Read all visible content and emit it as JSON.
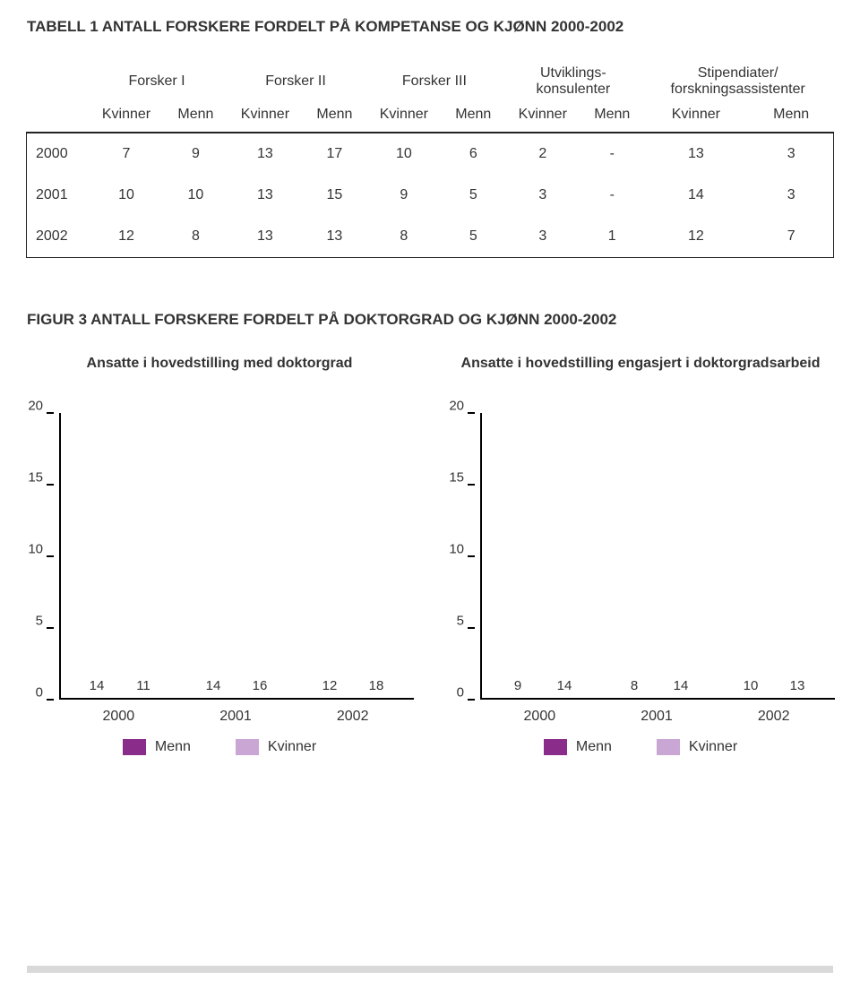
{
  "table": {
    "title": "TABELL 1  ANTALL FORSKERE FORDELT PÅ KOMPETANSE OG KJØNN 2000-2002",
    "groups": [
      "Forsker I",
      "Forsker II",
      "Forsker III",
      "Utviklings-\nkonsulenter",
      "Stipendiater/\nforskningsassistenter"
    ],
    "sub": [
      "Kvinner",
      "Menn"
    ],
    "rows": [
      {
        "year": "2000",
        "cells": [
          "7",
          "9",
          "13",
          "17",
          "10",
          "6",
          "2",
          "-",
          "13",
          "3"
        ]
      },
      {
        "year": "2001",
        "cells": [
          "10",
          "10",
          "13",
          "15",
          "9",
          "5",
          "3",
          "-",
          "14",
          "3"
        ]
      },
      {
        "year": "2002",
        "cells": [
          "12",
          "8",
          "13",
          "13",
          "8",
          "5",
          "3",
          "1",
          "12",
          "7"
        ]
      }
    ]
  },
  "figure": {
    "title": "FIGUR 3  ANTALL FORSKERE FORDELT PÅ DOKTORGRAD OG KJØNN 2000-2002",
    "ylim": [
      0,
      20
    ],
    "ytick_step": 5,
    "yticks": [
      "20",
      "15",
      "10",
      "5",
      "0"
    ],
    "categories": [
      "2000",
      "2001",
      "2002"
    ],
    "colors": {
      "menn": "#8a2d8a",
      "kvinner": "#c9a6d4"
    },
    "legend": {
      "menn": "Menn",
      "kvinner": "Kvinner"
    },
    "chart1": {
      "subtitle": "Ansatte i hovedstilling med doktorgrad",
      "series": [
        {
          "menn": 14,
          "kvinner": 11
        },
        {
          "menn": 14,
          "kvinner": 16
        },
        {
          "menn": 12,
          "kvinner": 18
        }
      ]
    },
    "chart2": {
      "subtitle": "Ansatte i hovedstilling engasjert i doktorgradsarbeid",
      "series": [
        {
          "menn": 9,
          "kvinner": 14
        },
        {
          "menn": 8,
          "kvinner": 14
        },
        {
          "menn": 10,
          "kvinner": 13
        }
      ]
    }
  }
}
